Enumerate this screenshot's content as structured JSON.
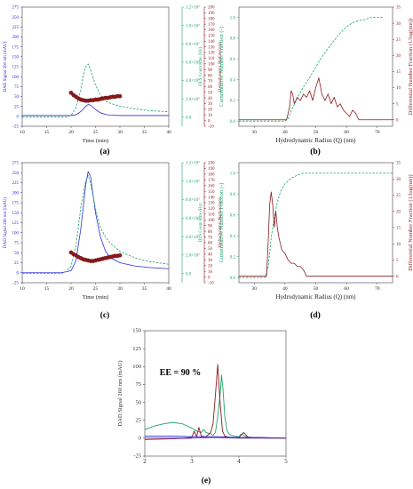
{
  "chart_data": [
    {
      "panel": "a",
      "caption": "(a)",
      "type": "line",
      "xlabel": "Time (min)",
      "xlim": [
        10,
        40
      ],
      "xticks": [
        10,
        15,
        20,
        25,
        30,
        35,
        40
      ],
      "axes": [
        {
          "side": "left",
          "label": "DAD Signal 260 nm (mAU)",
          "lim": [
            -25,
            275
          ],
          "ticks": [
            -25,
            0,
            25,
            50,
            75,
            100,
            125,
            150,
            175,
            200,
            225,
            250,
            275
          ]
        },
        {
          "side": "right-1",
          "label": "DLS Count Rate (Hz)",
          "lim": [
            -0.1,
            1.2
          ],
          "ticks": [
            "0.0",
            "2.0×10⁵",
            "4.0×10⁵",
            "6.0×10⁵",
            "8.0×10⁵",
            "1.0×10⁶",
            "1.2×10⁶"
          ],
          "tickvals": [
            0,
            0.2,
            0.4,
            0.6,
            0.8,
            1.0,
            1.2
          ]
        },
        {
          "side": "right-2",
          "label": "Hydrodynamic Radius (nm)",
          "lim": [
            -10,
            200
          ],
          "ticks": [
            -10,
            0,
            10,
            20,
            30,
            40,
            50,
            60,
            70,
            80,
            90,
            100,
            110,
            120,
            130,
            140,
            150,
            160,
            170,
            180,
            190,
            200
          ]
        }
      ],
      "series": [
        {
          "color": "#2b2bd6",
          "axis": "left",
          "style": "solid",
          "x": [
            10,
            20,
            21,
            22,
            23,
            23.5,
            24,
            25,
            26,
            27,
            28,
            30,
            35,
            40
          ],
          "y": [
            2,
            2,
            4,
            12,
            25,
            30,
            28,
            17,
            9,
            5,
            3,
            2,
            2,
            2
          ]
        },
        {
          "color": "#1fa36a",
          "axis": "right-1",
          "style": "dashed",
          "x": [
            10,
            19,
            20,
            21,
            22,
            22.5,
            23,
            23.5,
            24,
            25,
            26,
            27,
            28,
            30,
            33,
            36,
            40
          ],
          "y": [
            0.0,
            0.0,
            0.02,
            0.1,
            0.3,
            0.45,
            0.55,
            0.58,
            0.52,
            0.35,
            0.24,
            0.18,
            0.15,
            0.12,
            0.09,
            0.07,
            0.06
          ]
        },
        {
          "color": "#8b1a1a",
          "axis": "right-2",
          "style": "markers",
          "x": [
            20,
            20.5,
            21,
            21.5,
            22,
            22.5,
            23,
            23.5,
            24,
            24.5,
            25,
            25.5,
            26,
            26.5,
            27,
            27.5,
            28,
            28.5,
            29,
            29.5,
            30
          ],
          "y": [
            49,
            45,
            42,
            39,
            37,
            36,
            35,
            35,
            36,
            36,
            37,
            37,
            38,
            39,
            40,
            40,
            41,
            42,
            42,
            43,
            43
          ]
        }
      ]
    },
    {
      "panel": "b",
      "caption": "(b)",
      "type": "line",
      "xlabel": "Hydrodynamic Radius (Q) (nm)",
      "xlim": [
        25,
        75
      ],
      "xticks": [
        30,
        40,
        50,
        60,
        70
      ],
      "axes": [
        {
          "side": "left",
          "label": "Cummulative Number Fraction (-)",
          "lim": [
            -0.05,
            1.1
          ],
          "ticks": [
            "0.0",
            "0.2",
            "0.4",
            "0.6",
            "0.8",
            "1.0"
          ],
          "tickvals": [
            0,
            0.2,
            0.4,
            0.6,
            0.8,
            1.0
          ]
        },
        {
          "side": "right",
          "label": "Differential Number Fraction (1/log(nm))",
          "lim": [
            -2,
            35
          ],
          "ticks": [
            0,
            5,
            10,
            15,
            20,
            25,
            30,
            35
          ]
        }
      ],
      "series": [
        {
          "color": "#1fa36a",
          "axis": "left",
          "style": "dashed",
          "x": [
            25,
            40,
            41,
            42,
            44,
            46,
            48,
            50,
            52,
            54,
            56,
            58,
            60,
            62,
            64,
            66,
            68,
            70,
            72
          ],
          "y": [
            0,
            0,
            0.02,
            0.1,
            0.22,
            0.33,
            0.42,
            0.52,
            0.62,
            0.7,
            0.78,
            0.85,
            0.91,
            0.95,
            0.97,
            0.98,
            1.0,
            1.0,
            1.0
          ]
        },
        {
          "color": "#8b1a1a",
          "axis": "right",
          "style": "solid",
          "x": [
            25,
            40.5,
            41.5,
            42,
            42.5,
            43,
            44,
            45,
            46,
            47,
            48,
            49,
            50,
            51,
            52,
            53,
            54,
            55,
            56,
            57,
            58,
            59,
            60,
            61,
            62,
            63,
            64,
            75
          ],
          "y": [
            0,
            0,
            4,
            9,
            8,
            5,
            7,
            6,
            8,
            7,
            9,
            6,
            10,
            13,
            8,
            6,
            8,
            5,
            7,
            4,
            5,
            3,
            2,
            1,
            3,
            2,
            0,
            0
          ]
        }
      ]
    },
    {
      "panel": "c",
      "caption": "(c)",
      "type": "line",
      "xlabel": "Time (min)",
      "xlim": [
        10,
        40
      ],
      "xticks": [
        10,
        15,
        20,
        25,
        30,
        35,
        40
      ],
      "axes": [
        {
          "side": "left",
          "label": "DAD Signal 260 nm (mAU)",
          "lim": [
            -25,
            275
          ],
          "ticks": [
            -25,
            0,
            25,
            50,
            75,
            100,
            125,
            150,
            175,
            200,
            225,
            250,
            275
          ]
        },
        {
          "side": "right-1",
          "label": "DLS Count Rate (Hz)",
          "lim": [
            -0.1,
            1.2
          ],
          "ticks": [
            "0.0",
            "2.0×10⁵",
            "4.0×10⁵",
            "6.0×10⁵",
            "8.0×10⁵",
            "1.0×10⁶",
            "1.2×10⁶"
          ],
          "tickvals": [
            0,
            0.2,
            0.4,
            0.6,
            0.8,
            1.0,
            1.2
          ]
        },
        {
          "side": "right-2",
          "label": "Hydrodynamic Radius (nm)",
          "lim": [
            -10,
            200
          ],
          "ticks": [
            -10,
            0,
            10,
            20,
            30,
            40,
            50,
            60,
            70,
            80,
            90,
            100,
            110,
            120,
            130,
            140,
            150,
            160,
            170,
            180,
            190,
            200
          ]
        }
      ],
      "series": [
        {
          "color": "#2b2bd6",
          "axis": "left",
          "style": "solid",
          "x": [
            10,
            18,
            20,
            21,
            22,
            23,
            23.5,
            24,
            25,
            26,
            27,
            28,
            30,
            33,
            36,
            40
          ],
          "y": [
            0,
            0,
            5,
            30,
            110,
            220,
            253,
            240,
            150,
            90,
            55,
            38,
            25,
            17,
            13,
            10
          ]
        },
        {
          "color": "#1fa36a",
          "axis": "right-1",
          "style": "dashed",
          "x": [
            10,
            18,
            19,
            20,
            21,
            22,
            23,
            23.5,
            24,
            25,
            26,
            27,
            28,
            30,
            33,
            36,
            40
          ],
          "y": [
            0,
            0,
            0.02,
            0.08,
            0.3,
            0.72,
            1.0,
            1.06,
            0.98,
            0.7,
            0.5,
            0.4,
            0.33,
            0.24,
            0.17,
            0.13,
            0.1
          ]
        },
        {
          "color": "#8b1a1a",
          "axis": "right-2",
          "style": "markers",
          "x": [
            20,
            20.5,
            21,
            21.5,
            22,
            22.5,
            23,
            23.5,
            24,
            24.5,
            25,
            25.5,
            26,
            26.5,
            27,
            27.5,
            28,
            28.5,
            29,
            29.5,
            30
          ],
          "y": [
            43,
            40,
            38,
            35,
            33,
            31,
            30,
            29,
            28,
            28,
            29,
            30,
            31,
            32,
            33,
            34,
            35,
            36,
            37,
            37,
            38
          ]
        }
      ]
    },
    {
      "panel": "d",
      "caption": "(d)",
      "type": "line",
      "xlabel": "Hydrodynamic Radius (Q) (nm)",
      "xlim": [
        25,
        75
      ],
      "xticks": [
        30,
        40,
        50,
        60,
        70
      ],
      "axes": [
        {
          "side": "left",
          "label": "Cummulative Number Fraction (-)",
          "lim": [
            -0.05,
            1.1
          ],
          "ticks": [
            "0.0",
            "0.2",
            "0.4",
            "0.6",
            "0.8",
            "1.0"
          ],
          "tickvals": [
            0,
            0.2,
            0.4,
            0.6,
            0.8,
            1.0
          ]
        },
        {
          "side": "right",
          "label": "Differential Number Fraction (1/log(nm))",
          "lim": [
            -2,
            35
          ],
          "ticks": [
            0,
            5,
            10,
            15,
            20,
            25,
            30,
            35
          ]
        }
      ],
      "series": [
        {
          "color": "#1fa36a",
          "axis": "left",
          "style": "dashed",
          "x": [
            25,
            33.5,
            34.5,
            35.5,
            36.5,
            37.5,
            38.5,
            40,
            42,
            44,
            46,
            48,
            75
          ],
          "y": [
            0,
            0,
            0.1,
            0.38,
            0.58,
            0.72,
            0.82,
            0.9,
            0.95,
            0.98,
            1.0,
            1.0,
            1.0
          ]
        },
        {
          "color": "#8b1a1a",
          "axis": "right",
          "style": "solid",
          "x": [
            25,
            34,
            34.5,
            35,
            35.5,
            36,
            36.5,
            37,
            37.5,
            38,
            38.5,
            39,
            40,
            41,
            42,
            43,
            44,
            45,
            46,
            47,
            75
          ],
          "y": [
            0,
            0,
            10,
            22,
            26,
            22,
            15,
            20,
            15,
            12,
            10,
            8,
            7,
            5,
            4,
            4,
            3,
            3,
            2,
            0,
            0
          ]
        }
      ]
    },
    {
      "panel": "e",
      "caption": "(e)",
      "type": "line",
      "annotation": "EE = 90 %",
      "xlabel": "",
      "xlim": [
        2,
        5
      ],
      "xticks": [
        2,
        3,
        4,
        5
      ],
      "axes": [
        {
          "side": "left",
          "label": "DAD Signal 260 nm (mAU)",
          "lim": [
            -25,
            150
          ],
          "ticks": [
            -25,
            0,
            25,
            50,
            75,
            100,
            125,
            150
          ]
        }
      ],
      "series": [
        {
          "color": "#1fa36a",
          "axis": "left",
          "style": "solid",
          "x": [
            2,
            2.2,
            2.4,
            2.6,
            2.8,
            3.0,
            3.1,
            3.2,
            3.25,
            3.3,
            3.4,
            3.45,
            3.5,
            3.55,
            3.6,
            3.63,
            3.66,
            3.7,
            3.75,
            3.8,
            3.9,
            4.0,
            4.05,
            4.1,
            4.15,
            4.3,
            4.6,
            5.0
          ],
          "y": [
            12,
            17,
            20,
            22,
            20,
            14,
            10,
            8,
            12,
            8,
            6,
            4,
            8,
            30,
            60,
            88,
            70,
            30,
            10,
            5,
            3,
            2,
            6,
            4,
            2,
            1,
            0,
            0
          ]
        },
        {
          "color": "#8b1a1a",
          "axis": "left",
          "style": "solid",
          "x": [
            2,
            2.8,
            3.0,
            3.05,
            3.1,
            3.15,
            3.2,
            3.3,
            3.4,
            3.45,
            3.5,
            3.55,
            3.6,
            3.65,
            3.7,
            3.8,
            4.0,
            4.1,
            4.2,
            5.0
          ],
          "y": [
            0,
            0,
            1,
            10,
            2,
            15,
            3,
            2,
            8,
            20,
            60,
            103,
            50,
            10,
            3,
            1,
            1,
            8,
            1,
            0
          ]
        },
        {
          "color": "#2b2bd6",
          "axis": "left",
          "style": "solid",
          "x": [
            2,
            2.5,
            3.0,
            3.5,
            4.0,
            4.5,
            5.0
          ],
          "y": [
            3,
            3,
            2,
            2,
            1,
            1,
            0
          ]
        },
        {
          "color": "#7a2f8f",
          "axis": "left",
          "style": "solid",
          "x": [
            2,
            2.5,
            3.0,
            3.5,
            4.0,
            4.5,
            5.0
          ],
          "y": [
            -2,
            -1,
            0,
            1,
            0,
            0,
            0
          ]
        }
      ]
    }
  ]
}
